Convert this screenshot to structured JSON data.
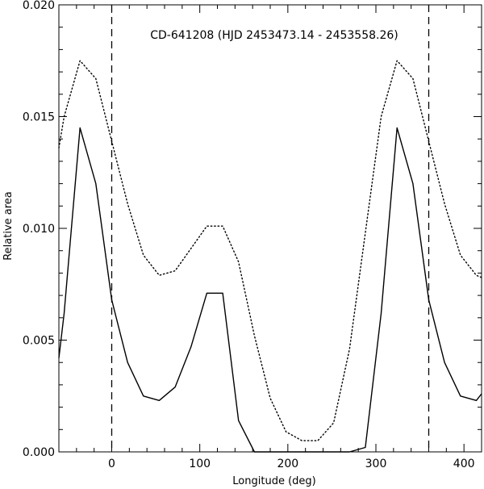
{
  "chart_data": {
    "type": "line",
    "title": "CD-641208 (HJD 2453473.14 - 2453558.26)",
    "xlabel": "Longitude (deg)",
    "ylabel": "Relative area",
    "xlim": [
      -60,
      420
    ],
    "ylim": [
      0.0,
      0.02
    ],
    "x_ticks": [
      0,
      100,
      200,
      300,
      400
    ],
    "x_tick_labels": [
      "0",
      "100",
      "200",
      "300",
      "400"
    ],
    "y_ticks": [
      0.0,
      0.005,
      0.01,
      0.015,
      0.02
    ],
    "y_tick_labels": [
      "0.000",
      "0.005",
      "0.010",
      "0.015",
      "0.020"
    ],
    "vertical_lines": [
      0,
      360
    ],
    "grid": false,
    "series": [
      {
        "style": "solid",
        "x": [
          -60,
          -54,
          -36,
          -18,
          0,
          18,
          36,
          54,
          72,
          90,
          108,
          126,
          144,
          162,
          180,
          198,
          216,
          234,
          252,
          270,
          288,
          306,
          324,
          342,
          360,
          378,
          396,
          414,
          420
        ],
        "y": [
          0.0042,
          0.0062,
          0.0145,
          0.012,
          0.0068,
          0.004,
          0.0025,
          0.0023,
          0.0029,
          0.0047,
          0.0071,
          0.0071,
          0.0014,
          0.0,
          0.0,
          0.0,
          0.0,
          0.0,
          0.0,
          0.0,
          0.0002,
          0.0062,
          0.0145,
          0.012,
          0.0068,
          0.004,
          0.0025,
          0.0023,
          0.0026
        ]
      },
      {
        "style": "dotted",
        "x": [
          -60,
          -54,
          -36,
          -18,
          0,
          18,
          36,
          54,
          72,
          90,
          108,
          126,
          144,
          162,
          180,
          198,
          216,
          234,
          252,
          270,
          288,
          306,
          324,
          342,
          360,
          378,
          396,
          414,
          420
        ],
        "y": [
          0.0136,
          0.015,
          0.0175,
          0.0167,
          0.0139,
          0.0111,
          0.0088,
          0.0079,
          0.0081,
          0.0091,
          0.0101,
          0.0101,
          0.0085,
          0.0052,
          0.0024,
          0.0009,
          0.0005,
          0.0005,
          0.0013,
          0.0046,
          0.0098,
          0.015,
          0.0175,
          0.0167,
          0.0139,
          0.0111,
          0.0088,
          0.0079,
          0.0078
        ]
      }
    ]
  }
}
